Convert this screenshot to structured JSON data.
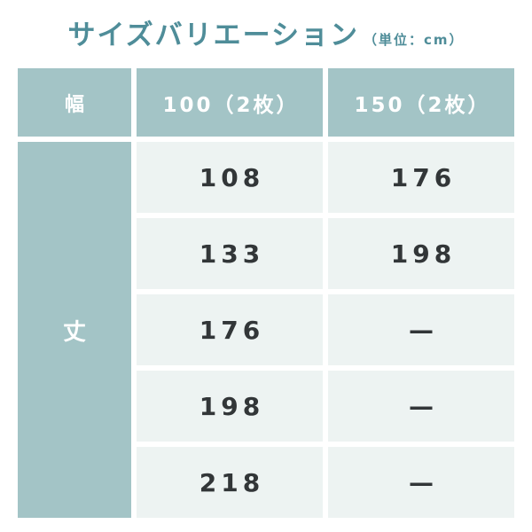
{
  "colors": {
    "accent_teal": "#a3c4c6",
    "title_teal": "#4f8d99",
    "cell_background": "#edf3f2",
    "text_dark": "#323638",
    "header_text": "#ffffff",
    "page_background": "#ffffff"
  },
  "chart_data": {
    "type": "table",
    "title": "サイズバリエーション",
    "unit_note": "（単位：cm）",
    "corner_header": "幅",
    "row_header": "丈",
    "column_headers": [
      "100（2枚）",
      "150（2枚）"
    ],
    "rows": [
      [
        "108",
        "176"
      ],
      [
        "133",
        "198"
      ],
      [
        "176",
        "—"
      ],
      [
        "198",
        "—"
      ],
      [
        "218",
        "—"
      ]
    ]
  }
}
